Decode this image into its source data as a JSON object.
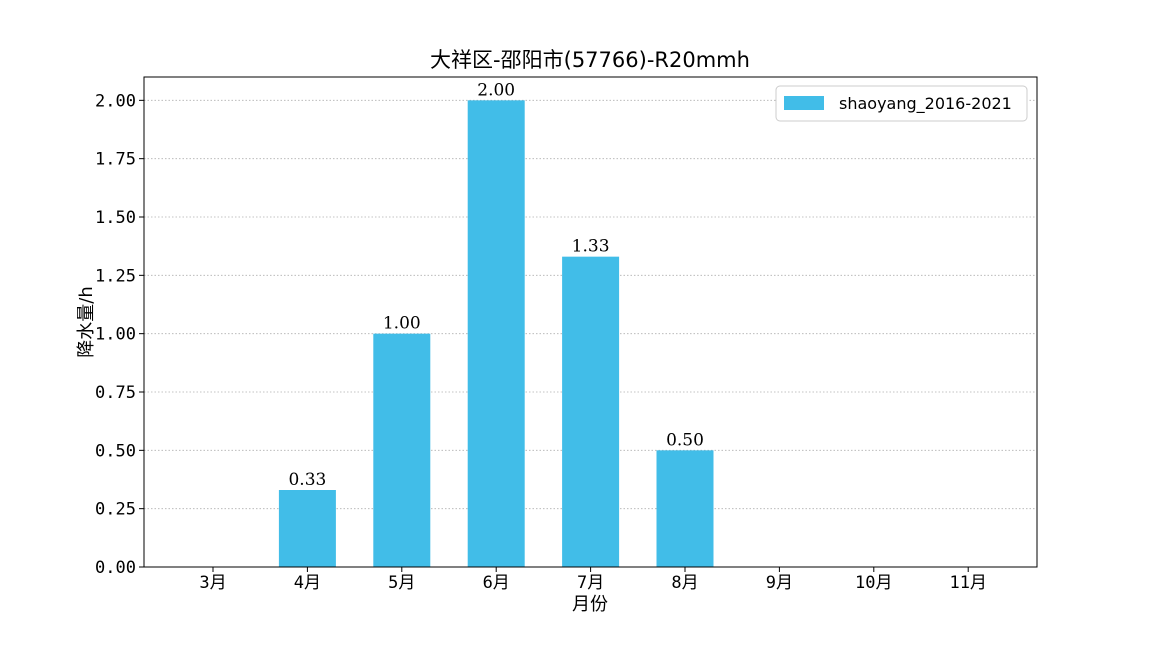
{
  "chart_data": {
    "type": "bar",
    "title": "大祥区-邵阳市(57766)-R20mmh",
    "xlabel": "月份",
    "ylabel": "降水量/h",
    "categories": [
      "3月",
      "4月",
      "5月",
      "6月",
      "7月",
      "8月",
      "9月",
      "10月",
      "11月"
    ],
    "series": [
      {
        "name": "shaoyang_2016-2021",
        "values": [
          0,
          0.33,
          1.0,
          2.0,
          1.33,
          0.5,
          0,
          0,
          0
        ],
        "data_labels": [
          "",
          "0.33",
          "1.00",
          "2.00",
          "1.33",
          "0.50",
          "",
          "",
          ""
        ],
        "color": "#41bde8"
      }
    ],
    "yticks": [
      "0.00",
      "0.25",
      "0.50",
      "0.75",
      "1.00",
      "1.25",
      "1.50",
      "1.75",
      "2.00"
    ],
    "ylim": [
      0,
      2.1
    ],
    "grid": true,
    "legend": "top-right"
  }
}
